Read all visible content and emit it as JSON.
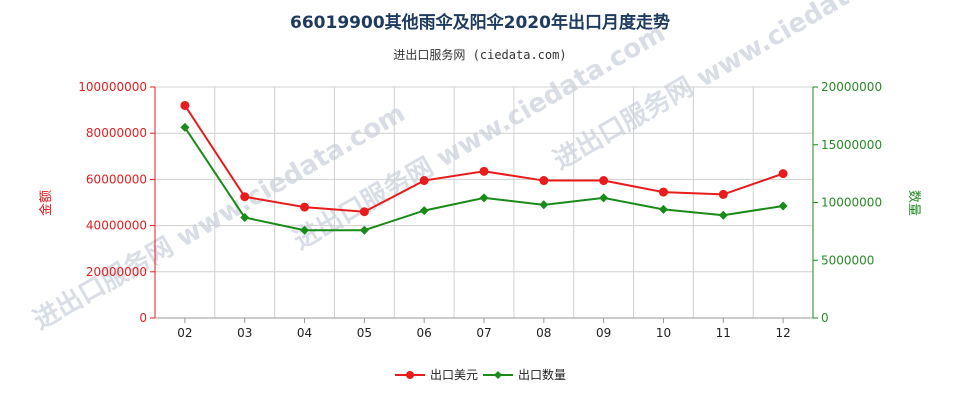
{
  "title": "66019900其他雨伞及阳伞2020年出口月度走势",
  "subtitle": "进出口服务网 (ciedata.com)",
  "watermark": "进出口服务网 www.ciedata.com",
  "colors": {
    "series1": "#e81c1c",
    "series2": "#1a8a1a"
  },
  "chart_data": {
    "type": "line",
    "categories": [
      "02",
      "03",
      "04",
      "05",
      "06",
      "07",
      "08",
      "09",
      "10",
      "11",
      "12"
    ],
    "ylabel": "金额",
    "y2label": "数量",
    "ylim": [
      0,
      100000000
    ],
    "y2lim": [
      0,
      20000000
    ],
    "yticks": [
      "0",
      "20000000",
      "40000000",
      "60000000",
      "80000000",
      "100000000"
    ],
    "y2ticks": [
      "0",
      "5000000",
      "10000000",
      "15000000",
      "20000000"
    ],
    "grid": true,
    "legend_position": "bottom",
    "series": [
      {
        "name": "出口美元",
        "axis": "left",
        "values": [
          92000000,
          52500000,
          48000000,
          46000000,
          59500000,
          63500000,
          59500000,
          59500000,
          54500000,
          53500000,
          62500000
        ]
      },
      {
        "name": "出口数量",
        "axis": "right",
        "values": [
          16500000,
          8700000,
          7600000,
          7600000,
          9300000,
          10400000,
          9800000,
          10400000,
          9400000,
          8900000,
          9700000
        ]
      }
    ]
  }
}
